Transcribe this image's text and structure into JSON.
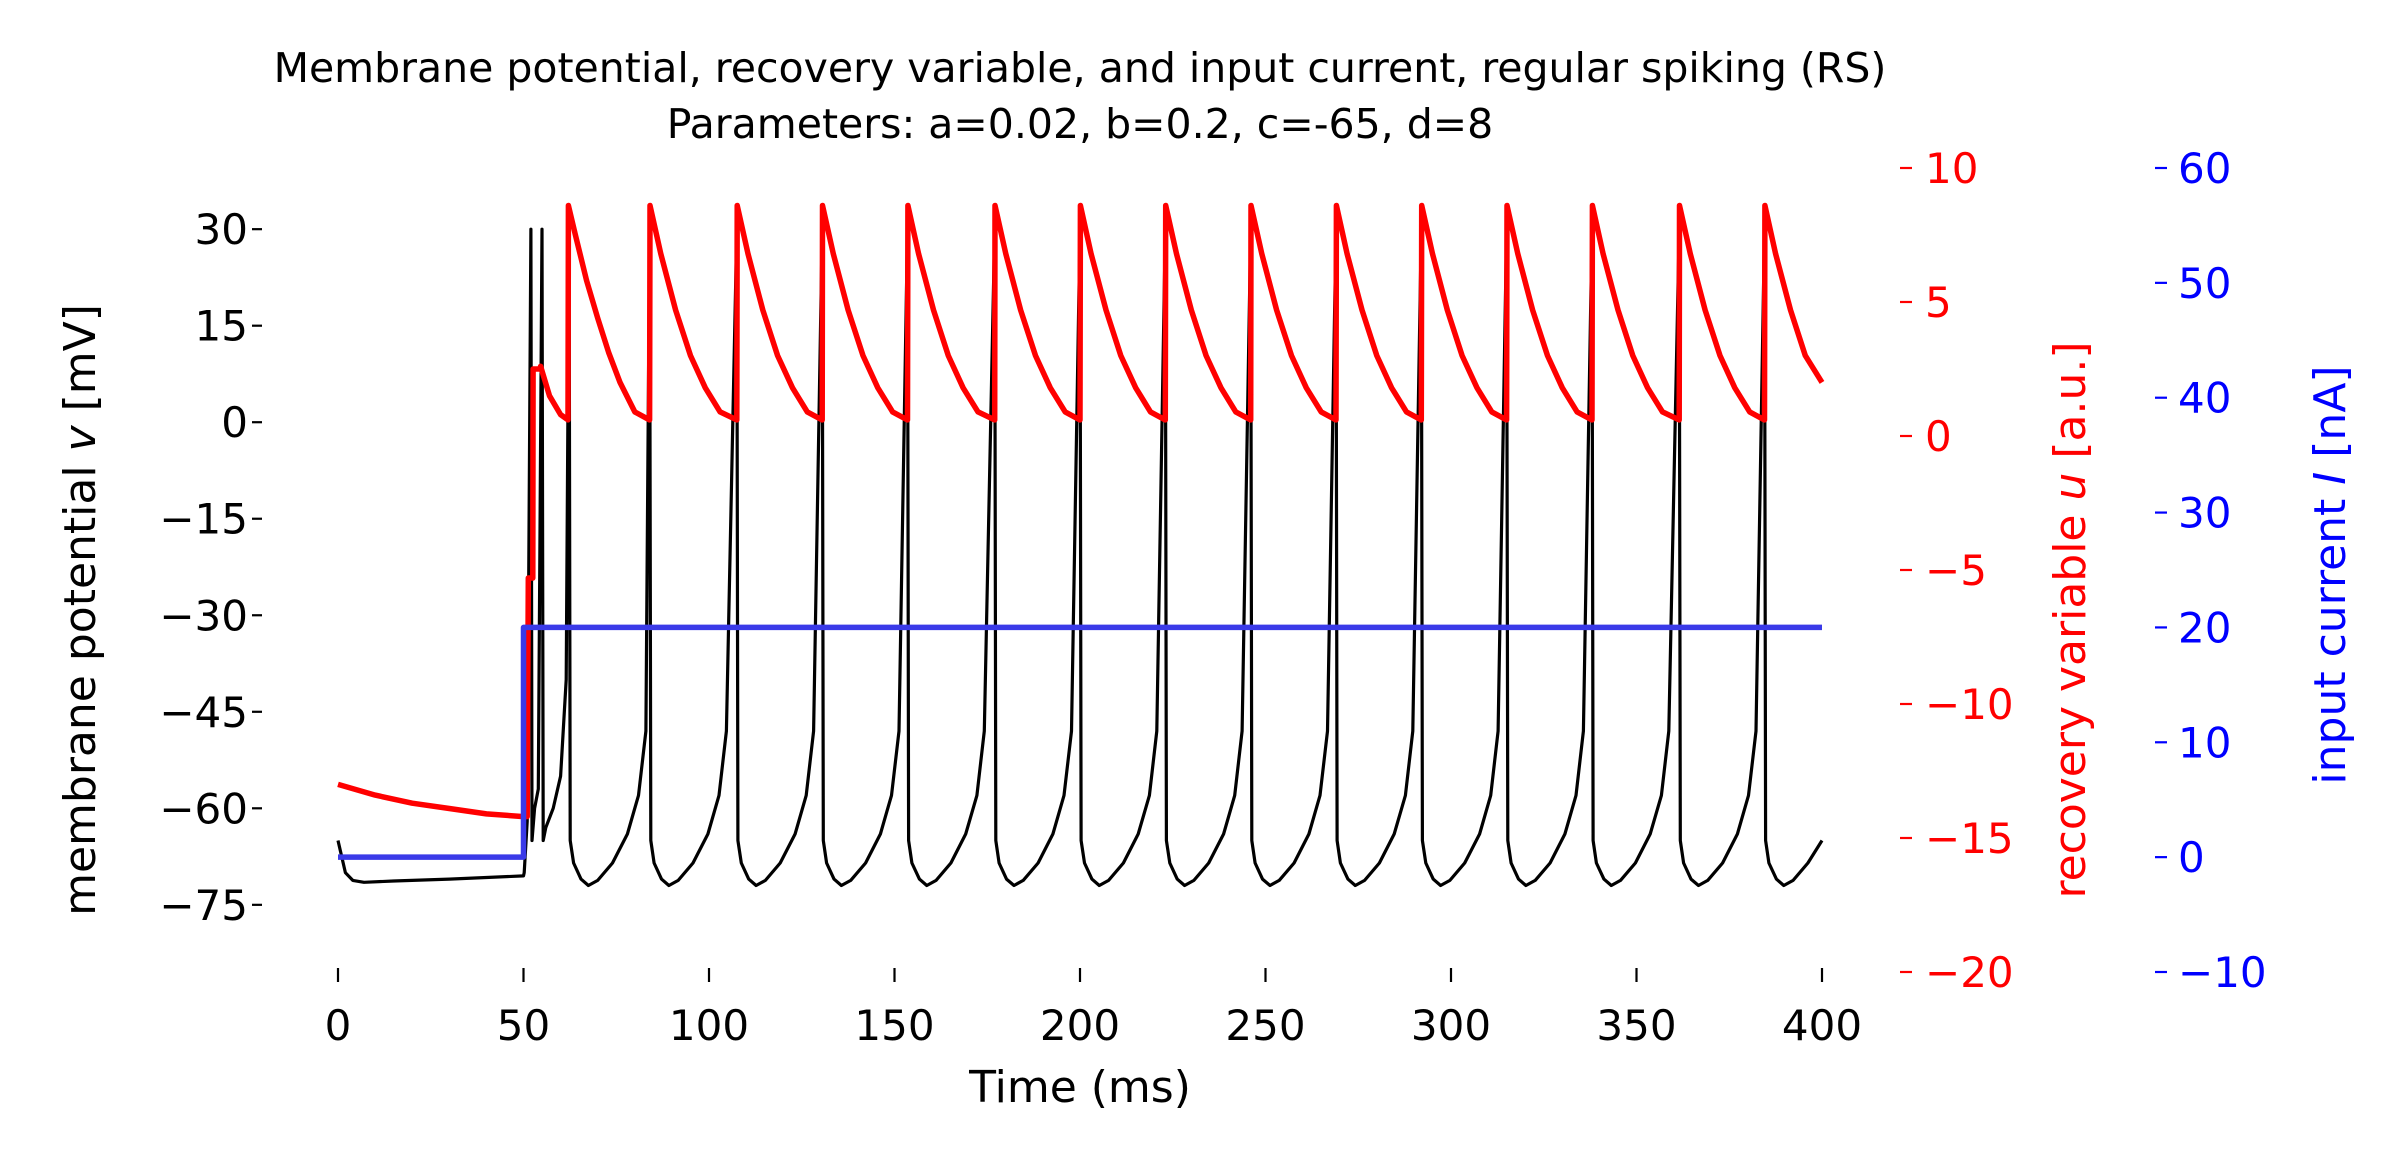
{
  "chart_data": {
    "type": "line",
    "title": "Membrane potential, recovery variable, and input current, regular spiking (RS)",
    "subtitle": "Parameters: a=0.02, b=0.2, c=-65, d=8",
    "xlabel": "Time (ms)",
    "xlim": [
      0,
      400
    ],
    "xticks": [
      0,
      50,
      100,
      150,
      200,
      250,
      300,
      350,
      400
    ],
    "axes": {
      "v": {
        "label_prefix": "membrane potential ",
        "label_var": "v",
        "label_suffix": " [mV]",
        "ylim": [
          -80,
          35
        ],
        "ticks": [
          30,
          15,
          0,
          -15,
          -30,
          -45,
          -60,
          -75
        ],
        "tick_labels": [
          "30",
          "15",
          "0",
          "−15",
          "−30",
          "−45",
          "−60",
          "−75"
        ],
        "color": "#000000"
      },
      "u": {
        "label_prefix": "recovery variable ",
        "label_var": "u",
        "label_suffix": " [a.u.]",
        "ylim": [
          -20,
          10
        ],
        "ticks": [
          10,
          5,
          0,
          -5,
          -10,
          -15,
          -20
        ],
        "tick_labels": [
          "10",
          "5",
          "0",
          "−5",
          "−10",
          "−15",
          "−20"
        ],
        "color": "#ff0000"
      },
      "I": {
        "label_prefix": "input current ",
        "label_var": "I",
        "label_suffix": " [nA]",
        "ylim": [
          -10,
          60
        ],
        "ticks": [
          60,
          50,
          40,
          30,
          20,
          10,
          0,
          -10
        ],
        "tick_labels": [
          "60",
          "50",
          "40",
          "30",
          "20",
          "10",
          "0",
          "−10"
        ],
        "color": "#0000ff"
      }
    },
    "series": [
      {
        "name": "v",
        "axis": "v",
        "color": "#000000",
        "points": [
          [
            0,
            -65
          ],
          [
            2,
            -70
          ],
          [
            4,
            -71.2
          ],
          [
            7,
            -71.5
          ],
          [
            15,
            -71.3
          ],
          [
            30,
            -71.0
          ],
          [
            50,
            -70.5
          ],
          [
            50.2,
            -70
          ],
          [
            51,
            -62
          ],
          [
            52,
            30
          ],
          [
            52.3,
            -65
          ],
          [
            53,
            -60
          ],
          [
            54,
            -57
          ],
          [
            55,
            30
          ],
          [
            55.3,
            -65
          ],
          [
            56,
            -63
          ],
          [
            58,
            -60
          ],
          [
            60,
            -55
          ],
          [
            61.5,
            -40
          ],
          [
            62.3,
            30
          ],
          [
            62.6,
            -65
          ],
          [
            63.5,
            -68.5
          ],
          [
            65.5,
            -71
          ],
          [
            67.5,
            -72
          ],
          [
            70,
            -71.2
          ],
          [
            74,
            -68.5
          ],
          [
            78,
            -64
          ],
          [
            81,
            -58
          ],
          [
            83,
            -48
          ],
          [
            84,
            30
          ],
          [
            84.3,
            -65
          ],
          [
            85.2,
            -68.5
          ],
          [
            87.2,
            -71
          ],
          [
            89.2,
            -72
          ],
          [
            91.7,
            -71.2
          ],
          [
            95.7,
            -68.5
          ],
          [
            99.7,
            -64
          ],
          [
            102.7,
            -58
          ],
          [
            104.7,
            -48
          ],
          [
            107.5,
            30
          ],
          [
            107.8,
            -65
          ],
          [
            108.7,
            -68.5
          ],
          [
            110.7,
            -71
          ],
          [
            112.7,
            -72
          ],
          [
            115.2,
            -71.2
          ],
          [
            119.2,
            -68.5
          ],
          [
            123.2,
            -64
          ],
          [
            126.2,
            -58
          ],
          [
            128.2,
            -48
          ],
          [
            130.5,
            30
          ],
          [
            130.8,
            -65
          ],
          [
            131.7,
            -68.5
          ],
          [
            133.7,
            -71
          ],
          [
            135.7,
            -72
          ],
          [
            138.2,
            -71.2
          ],
          [
            142.2,
            -68.5
          ],
          [
            146.2,
            -64
          ],
          [
            149.2,
            -58
          ],
          [
            151.2,
            -48
          ],
          [
            153.5,
            30
          ],
          [
            153.8,
            -65
          ],
          [
            154.7,
            -68.5
          ],
          [
            156.7,
            -71
          ],
          [
            158.7,
            -72
          ],
          [
            161.2,
            -71.2
          ],
          [
            165.2,
            -68.5
          ],
          [
            169.2,
            -64
          ],
          [
            172.2,
            -58
          ],
          [
            174.2,
            -48
          ],
          [
            177,
            30
          ],
          [
            177.3,
            -65
          ],
          [
            178.2,
            -68.5
          ],
          [
            180.2,
            -71
          ],
          [
            182.2,
            -72
          ],
          [
            184.7,
            -71.2
          ],
          [
            188.7,
            -68.5
          ],
          [
            192.7,
            -64
          ],
          [
            195.7,
            -58
          ],
          [
            197.7,
            -48
          ],
          [
            200,
            30
          ],
          [
            200.3,
            -65
          ],
          [
            201.2,
            -68.5
          ],
          [
            203.2,
            -71
          ],
          [
            205.2,
            -72
          ],
          [
            207.7,
            -71.2
          ],
          [
            211.7,
            -68.5
          ],
          [
            215.7,
            -64
          ],
          [
            218.7,
            -58
          ],
          [
            220.7,
            -48
          ],
          [
            223,
            30
          ],
          [
            223.3,
            -65
          ],
          [
            224.2,
            -68.5
          ],
          [
            226.2,
            -71
          ],
          [
            228.2,
            -72
          ],
          [
            230.7,
            -71.2
          ],
          [
            234.7,
            -68.5
          ],
          [
            238.7,
            -64
          ],
          [
            241.7,
            -58
          ],
          [
            243.7,
            -48
          ],
          [
            246,
            30
          ],
          [
            246.3,
            -65
          ],
          [
            247.2,
            -68.5
          ],
          [
            249.2,
            -71
          ],
          [
            251.2,
            -72
          ],
          [
            253.7,
            -71.2
          ],
          [
            257.7,
            -68.5
          ],
          [
            261.7,
            -64
          ],
          [
            264.7,
            -58
          ],
          [
            266.7,
            -48
          ],
          [
            269,
            30
          ],
          [
            269.3,
            -65
          ],
          [
            270.2,
            -68.5
          ],
          [
            272.2,
            -71
          ],
          [
            274.2,
            -72
          ],
          [
            276.7,
            -71.2
          ],
          [
            280.7,
            -68.5
          ],
          [
            284.7,
            -64
          ],
          [
            287.7,
            -58
          ],
          [
            289.7,
            -48
          ],
          [
            292,
            30
          ],
          [
            292.3,
            -65
          ],
          [
            293.2,
            -68.5
          ],
          [
            295.2,
            -71
          ],
          [
            297.2,
            -72
          ],
          [
            299.7,
            -71.2
          ],
          [
            303.7,
            -68.5
          ],
          [
            307.7,
            -64
          ],
          [
            310.7,
            -58
          ],
          [
            312.7,
            -48
          ],
          [
            315,
            30
          ],
          [
            315.3,
            -65
          ],
          [
            316.2,
            -68.5
          ],
          [
            318.2,
            -71
          ],
          [
            320.2,
            -72
          ],
          [
            322.7,
            -71.2
          ],
          [
            326.7,
            -68.5
          ],
          [
            330.7,
            -64
          ],
          [
            333.7,
            -58
          ],
          [
            335.7,
            -48
          ],
          [
            338,
            30
          ],
          [
            338.3,
            -65
          ],
          [
            339.2,
            -68.5
          ],
          [
            341.2,
            -71
          ],
          [
            343.2,
            -72
          ],
          [
            345.7,
            -71.2
          ],
          [
            349.7,
            -68.5
          ],
          [
            353.7,
            -64
          ],
          [
            356.7,
            -58
          ],
          [
            358.7,
            -48
          ],
          [
            361.5,
            30
          ],
          [
            361.8,
            -65
          ],
          [
            362.7,
            -68.5
          ],
          [
            364.7,
            -71
          ],
          [
            366.7,
            -72
          ],
          [
            369.2,
            -71.2
          ],
          [
            373.2,
            -68.5
          ],
          [
            377.2,
            -64
          ],
          [
            380.2,
            -58
          ],
          [
            382.2,
            -48
          ],
          [
            384.5,
            30
          ],
          [
            384.8,
            -65
          ],
          [
            385.7,
            -68.5
          ],
          [
            387.7,
            -71
          ],
          [
            389.7,
            -72
          ],
          [
            392.2,
            -71.2
          ],
          [
            396.2,
            -68.5
          ],
          [
            400,
            -65
          ]
        ]
      },
      {
        "name": "u",
        "axis": "u",
        "color": "#ff0000",
        "points": [
          [
            0,
            -13
          ],
          [
            10,
            -13.4
          ],
          [
            20,
            -13.7
          ],
          [
            30,
            -13.9
          ],
          [
            40,
            -14.1
          ],
          [
            50,
            -14.2
          ],
          [
            51,
            -14.2
          ],
          [
            51.3,
            -5.3
          ],
          [
            52.5,
            -5.3
          ],
          [
            52.6,
            2.5
          ],
          [
            54.5,
            2.5
          ],
          [
            54.6,
            2.6
          ],
          [
            57,
            1.5
          ],
          [
            60,
            0.8
          ],
          [
            62,
            0.6
          ],
          [
            62.1,
            8.6
          ],
          [
            64,
            7.5
          ],
          [
            67,
            5.8
          ],
          [
            70,
            4.4
          ],
          [
            73,
            3.1
          ],
          [
            76,
            2.0
          ],
          [
            80,
            0.9
          ],
          [
            84,
            0.6
          ],
          [
            84.1,
            8.6
          ],
          [
            87,
            6.8
          ],
          [
            91,
            4.7
          ],
          [
            95,
            3.0
          ],
          [
            99,
            1.8
          ],
          [
            103,
            0.9
          ],
          [
            107.5,
            0.6
          ],
          [
            107.6,
            8.6
          ],
          [
            110.5,
            6.8
          ],
          [
            114.5,
            4.7
          ],
          [
            118.5,
            3.0
          ],
          [
            122.5,
            1.8
          ],
          [
            126.5,
            0.9
          ],
          [
            130.5,
            0.6
          ],
          [
            130.6,
            8.6
          ],
          [
            133.5,
            6.8
          ],
          [
            137.5,
            4.7
          ],
          [
            141.5,
            3.0
          ],
          [
            145.5,
            1.8
          ],
          [
            149.5,
            0.9
          ],
          [
            153.5,
            0.6
          ],
          [
            153.6,
            8.6
          ],
          [
            156.5,
            6.8
          ],
          [
            160.5,
            4.7
          ],
          [
            164.5,
            3.0
          ],
          [
            168.5,
            1.8
          ],
          [
            172.5,
            0.9
          ],
          [
            177,
            0.6
          ],
          [
            177.1,
            8.6
          ],
          [
            180,
            6.8
          ],
          [
            184,
            4.7
          ],
          [
            188,
            3.0
          ],
          [
            192,
            1.8
          ],
          [
            196,
            0.9
          ],
          [
            200,
            0.6
          ],
          [
            200.1,
            8.6
          ],
          [
            203,
            6.8
          ],
          [
            207,
            4.7
          ],
          [
            211,
            3.0
          ],
          [
            215,
            1.8
          ],
          [
            219,
            0.9
          ],
          [
            223,
            0.6
          ],
          [
            223.1,
            8.6
          ],
          [
            226,
            6.8
          ],
          [
            230,
            4.7
          ],
          [
            234,
            3.0
          ],
          [
            238,
            1.8
          ],
          [
            242,
            0.9
          ],
          [
            246,
            0.6
          ],
          [
            246.1,
            8.6
          ],
          [
            249,
            6.8
          ],
          [
            253,
            4.7
          ],
          [
            257,
            3.0
          ],
          [
            261,
            1.8
          ],
          [
            265,
            0.9
          ],
          [
            269,
            0.6
          ],
          [
            269.1,
            8.6
          ],
          [
            272,
            6.8
          ],
          [
            276,
            4.7
          ],
          [
            280,
            3.0
          ],
          [
            284,
            1.8
          ],
          [
            288,
            0.9
          ],
          [
            292,
            0.6
          ],
          [
            292.1,
            8.6
          ],
          [
            295,
            6.8
          ],
          [
            299,
            4.7
          ],
          [
            303,
            3.0
          ],
          [
            307,
            1.8
          ],
          [
            311,
            0.9
          ],
          [
            315,
            0.6
          ],
          [
            315.1,
            8.6
          ],
          [
            318,
            6.8
          ],
          [
            322,
            4.7
          ],
          [
            326,
            3.0
          ],
          [
            330,
            1.8
          ],
          [
            334,
            0.9
          ],
          [
            338,
            0.6
          ],
          [
            338.1,
            8.6
          ],
          [
            341,
            6.8
          ],
          [
            345,
            4.7
          ],
          [
            349,
            3.0
          ],
          [
            353,
            1.8
          ],
          [
            357,
            0.9
          ],
          [
            361.5,
            0.6
          ],
          [
            361.6,
            8.6
          ],
          [
            364.5,
            6.8
          ],
          [
            368.5,
            4.7
          ],
          [
            372.5,
            3.0
          ],
          [
            376.5,
            1.8
          ],
          [
            380.5,
            0.9
          ],
          [
            384.5,
            0.6
          ],
          [
            384.6,
            8.6
          ],
          [
            387.5,
            6.8
          ],
          [
            391.5,
            4.7
          ],
          [
            395.5,
            3.0
          ],
          [
            400,
            2.0
          ]
        ]
      },
      {
        "name": "I",
        "axis": "I",
        "color": "#3a3ae8",
        "points": [
          [
            0,
            0
          ],
          [
            50,
            0
          ],
          [
            50,
            20
          ],
          [
            400,
            20
          ]
        ]
      }
    ],
    "grid": false,
    "legend": "none"
  }
}
